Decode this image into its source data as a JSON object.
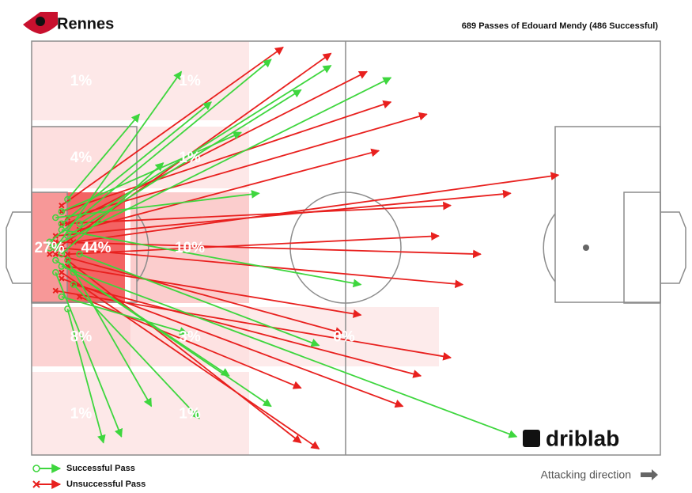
{
  "chart_data": {
    "type": "pass-map",
    "title": "Rennes",
    "subtitle": "689 Passes of Edouard Mendy (486 Successful)",
    "xlim": [
      0,
      105
    ],
    "ylim": [
      0,
      68
    ],
    "zones": {
      "values": [
        1,
        1,
        4,
        1,
        27,
        44,
        10,
        8,
        3,
        0,
        1,
        1
      ],
      "value_labels": [
        "1%",
        "1%",
        "4%",
        "1%",
        "27%",
        "44%",
        "10%",
        "8%",
        "3%",
        "0%",
        "1%",
        "1%"
      ],
      "color": "#f03c3c"
    },
    "series": [
      {
        "name": "Successful Pass",
        "color": "#3ed63e",
        "start_x": [
          4,
          5,
          6,
          3,
          5,
          7,
          4,
          6,
          5,
          8,
          4,
          6,
          5,
          3,
          7,
          5,
          6,
          4,
          8,
          5
        ],
        "start_y": [
          34,
          30,
          36,
          33,
          28,
          40,
          38,
          32,
          35,
          30,
          36,
          26,
          42,
          34,
          38,
          31,
          44,
          29,
          35,
          37
        ],
        "end_x": [
          25,
          30,
          20,
          40,
          35,
          28,
          15,
          45,
          22,
          50,
          33,
          18,
          26,
          60,
          40,
          55,
          12,
          38,
          48,
          81
        ],
        "end_y": [
          5,
          10,
          60,
          3,
          15,
          62,
          65,
          8,
          20,
          4,
          55,
          12,
          48,
          6,
          60,
          40,
          66,
          25,
          50,
          65
        ]
      },
      {
        "name": "Unsuccessful Pass",
        "color": "#e8201e",
        "start_x": [
          4,
          5,
          6,
          3,
          5,
          7,
          4,
          6,
          5,
          8,
          5,
          6,
          4,
          7,
          5,
          6,
          4,
          5,
          6,
          8
        ],
        "start_y": [
          33,
          30,
          37,
          35,
          28,
          40,
          32,
          36,
          34,
          31,
          39,
          29,
          35,
          33,
          38,
          30,
          41,
          27,
          35,
          42
        ],
        "end_x": [
          75,
          70,
          55,
          50,
          60,
          65,
          80,
          45,
          72,
          58,
          62,
          66,
          52,
          88,
          48,
          56,
          70,
          42,
          68,
          45
        ],
        "end_y": [
          35,
          27,
          45,
          2,
          10,
          55,
          25,
          66,
          40,
          18,
          60,
          12,
          48,
          22,
          67,
          5,
          52,
          1,
          32,
          57
        ]
      }
    ],
    "direction_label": "Attacking direction",
    "brand": "driblab"
  }
}
